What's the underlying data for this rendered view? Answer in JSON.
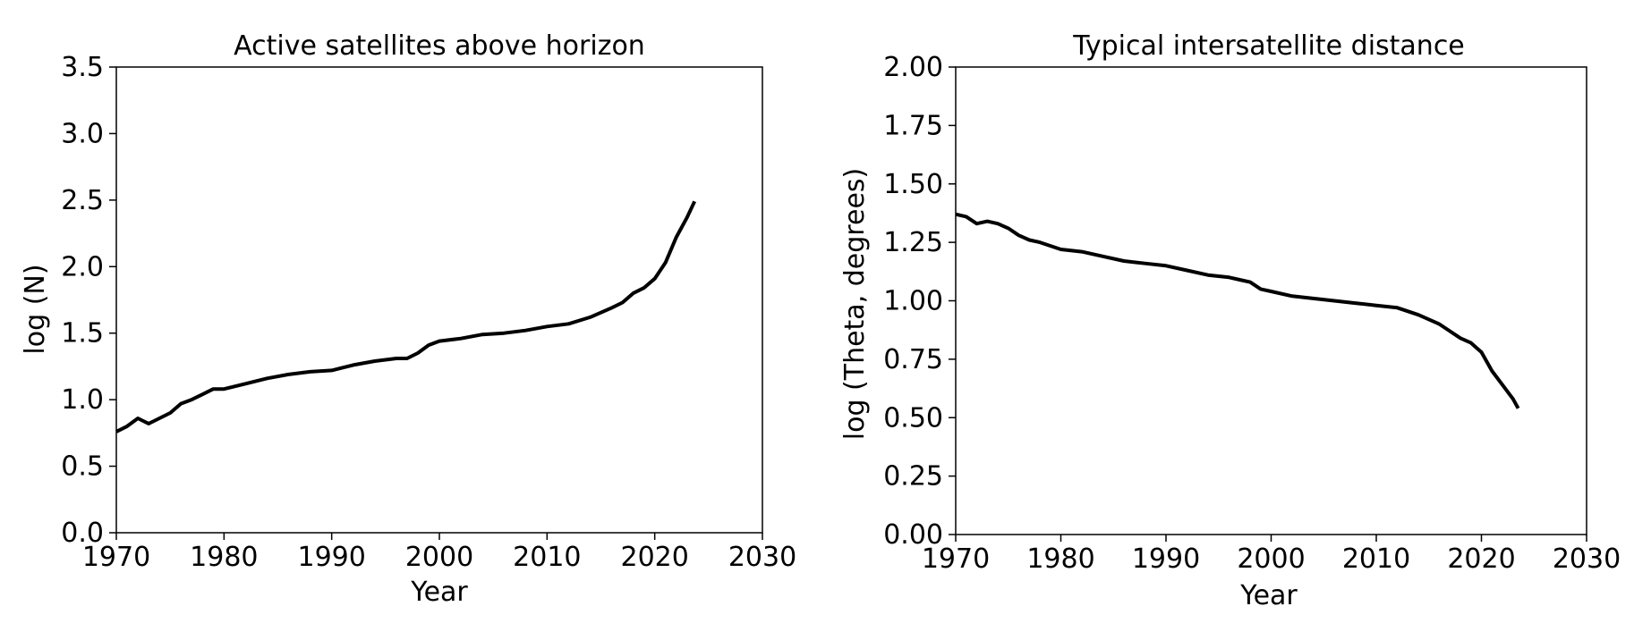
{
  "chart_data": [
    {
      "type": "line",
      "title": "Active satellites above horizon",
      "xlabel": "Year",
      "ylabel": "log (N)",
      "xlim": [
        1970,
        2030
      ],
      "ylim": [
        0.0,
        3.5
      ],
      "xticks": [
        1970,
        1980,
        1990,
        2000,
        2010,
        2020,
        2030
      ],
      "yticks": [
        0.0,
        0.5,
        1.0,
        1.5,
        2.0,
        2.5,
        3.0,
        3.5
      ],
      "ytick_labels": [
        "0.0",
        "0.5",
        "1.0",
        "1.5",
        "2.0",
        "2.5",
        "3.0",
        "3.5"
      ],
      "grid": false,
      "series": [
        {
          "color": "#000000",
          "x": [
            1970.0,
            1971.0,
            1972.0,
            1972.5,
            1973.0,
            1973.5,
            1974.0,
            1975.0,
            1976.0,
            1977.0,
            1978.0,
            1979.0,
            1980.0,
            1982.0,
            1984.0,
            1986.0,
            1988.0,
            1990.0,
            1992.0,
            1994.0,
            1996.0,
            1997.0,
            1998.0,
            1999.0,
            2000.0,
            2002.0,
            2004.0,
            2006.0,
            2008.0,
            2010.0,
            2012.0,
            2014.0,
            2016.0,
            2017.0,
            2018.0,
            2019.0,
            2020.0,
            2021.0,
            2022.0,
            2023.0,
            2023.7
          ],
          "y": [
            0.76,
            0.8,
            0.86,
            0.84,
            0.82,
            0.84,
            0.86,
            0.9,
            0.97,
            1.0,
            1.04,
            1.08,
            1.08,
            1.12,
            1.16,
            1.19,
            1.21,
            1.22,
            1.26,
            1.29,
            1.31,
            1.31,
            1.35,
            1.41,
            1.44,
            1.46,
            1.49,
            1.5,
            1.52,
            1.55,
            1.57,
            1.62,
            1.69,
            1.73,
            1.8,
            1.84,
            1.91,
            2.03,
            2.22,
            2.37,
            2.49
          ]
        }
      ]
    },
    {
      "type": "line",
      "title": "Typical intersatellite distance",
      "xlabel": "Year",
      "ylabel": "log (Theta, degrees)",
      "xlim": [
        1970,
        2030
      ],
      "ylim": [
        0.0,
        2.0
      ],
      "xticks": [
        1970,
        1980,
        1990,
        2000,
        2010,
        2020,
        2030
      ],
      "yticks": [
        0.0,
        0.25,
        0.5,
        0.75,
        1.0,
        1.25,
        1.5,
        1.75,
        2.0
      ],
      "ytick_labels": [
        "0.00",
        "0.25",
        "0.50",
        "0.75",
        "1.00",
        "1.25",
        "1.50",
        "1.75",
        "2.00"
      ],
      "grid": false,
      "series": [
        {
          "color": "#000000",
          "x": [
            1970.0,
            1971.0,
            1972.0,
            1973.0,
            1974.0,
            1975.0,
            1976.0,
            1977.0,
            1978.0,
            1980.0,
            1982.0,
            1984.0,
            1986.0,
            1988.0,
            1990.0,
            1992.0,
            1994.0,
            1996.0,
            1997.0,
            1998.0,
            1999.0,
            2000.0,
            2002.0,
            2004.0,
            2006.0,
            2008.0,
            2010.0,
            2012.0,
            2014.0,
            2016.0,
            2017.0,
            2018.0,
            2019.0,
            2020.0,
            2021.0,
            2022.0,
            2023.0,
            2023.5
          ],
          "y": [
            1.37,
            1.36,
            1.33,
            1.34,
            1.33,
            1.31,
            1.28,
            1.26,
            1.25,
            1.22,
            1.21,
            1.19,
            1.17,
            1.16,
            1.15,
            1.13,
            1.11,
            1.1,
            1.09,
            1.08,
            1.05,
            1.04,
            1.02,
            1.01,
            1.0,
            0.99,
            0.98,
            0.97,
            0.94,
            0.9,
            0.87,
            0.84,
            0.82,
            0.78,
            0.7,
            0.64,
            0.58,
            0.54
          ]
        }
      ]
    }
  ]
}
